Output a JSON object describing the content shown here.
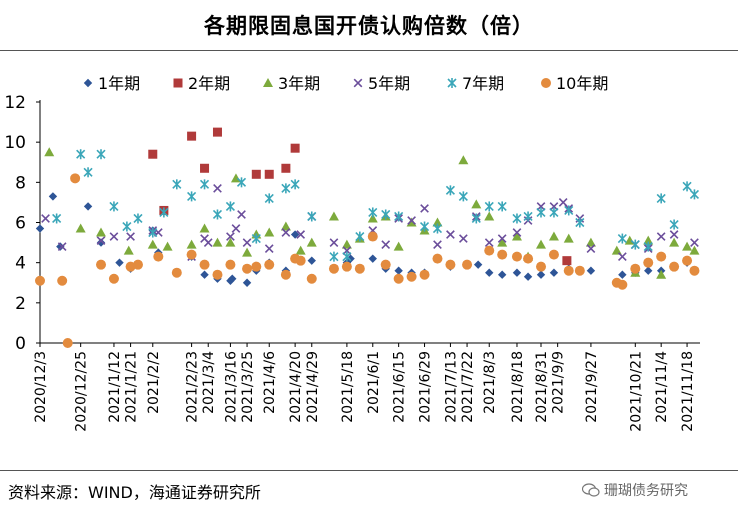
{
  "header": {
    "title": "各期限固息国开债认购倍数（倍）"
  },
  "footer": {
    "source": "资料来源：WIND，海通证券研究所",
    "watermark": "珊瑚债务研究"
  },
  "chart_data": {
    "type": "scatter",
    "title": "各期限固息国开债认购倍数（倍）",
    "xlabel": "",
    "ylabel": "",
    "ylim": [
      0,
      12
    ],
    "yticks": [
      0,
      2,
      4,
      6,
      8,
      10,
      12
    ],
    "grid": false,
    "legend_position": "top",
    "x_start": "2020-12-03",
    "x_end": "2021-11-25",
    "x_tick_labels": [
      "2020/12/3",
      "2020/12/25",
      "2021/1/12",
      "2021/1/21",
      "2021/2/2",
      "2021/2/23",
      "2021/3/4",
      "2021/3/16",
      "2021/3/25",
      "2021/4/6",
      "2021/4/20",
      "2021/4/29",
      "2021/5/18",
      "2021/6/1",
      "2021/6/15",
      "2021/6/29",
      "2021/7/13",
      "2021/7/22",
      "2021/8/3",
      "2021/8/18",
      "2021/8/31",
      "2021/9/9",
      "2021/9/27",
      "2021/10/21",
      "2021/11/4",
      "2021/11/18"
    ],
    "x_tick_dates": [
      "2020-12-03",
      "2020-12-25",
      "2021-01-12",
      "2021-01-21",
      "2021-02-02",
      "2021-02-23",
      "2021-03-04",
      "2021-03-16",
      "2021-03-25",
      "2021-04-06",
      "2021-04-20",
      "2021-04-29",
      "2021-05-18",
      "2021-06-01",
      "2021-06-15",
      "2021-06-29",
      "2021-07-13",
      "2021-07-22",
      "2021-08-03",
      "2021-08-18",
      "2021-08-31",
      "2021-09-09",
      "2021-09-27",
      "2021-10-21",
      "2021-11-04",
      "2021-11-18"
    ],
    "series": [
      {
        "name": "1年期",
        "color": "#2E5597",
        "marker": "diamond",
        "points": [
          [
            "2020-12-03",
            5.7
          ],
          [
            "2020-12-10",
            7.3
          ],
          [
            "2020-12-14",
            4.8
          ],
          [
            "2020-12-29",
            6.8
          ],
          [
            "2021-01-05",
            5.0
          ],
          [
            "2021-01-15",
            4.0
          ],
          [
            "2021-01-21",
            3.7
          ],
          [
            "2021-02-02",
            5.6
          ],
          [
            "2021-02-05",
            4.5
          ],
          [
            "2021-02-23",
            4.3
          ],
          [
            "2021-03-02",
            3.4
          ],
          [
            "2021-03-09",
            3.2
          ],
          [
            "2021-03-16",
            3.1
          ],
          [
            "2021-03-17",
            3.2
          ],
          [
            "2021-03-25",
            3.0
          ],
          [
            "2021-03-30",
            3.6
          ],
          [
            "2021-04-06",
            4.0
          ],
          [
            "2021-04-15",
            3.6
          ],
          [
            "2021-04-20",
            5.4
          ],
          [
            "2021-04-23",
            4.1
          ],
          [
            "2021-04-29",
            4.1
          ],
          [
            "2021-05-18",
            4.0
          ],
          [
            "2021-05-20",
            4.2
          ],
          [
            "2021-06-01",
            4.2
          ],
          [
            "2021-06-08",
            3.7
          ],
          [
            "2021-06-15",
            3.6
          ],
          [
            "2021-06-22",
            3.5
          ],
          [
            "2021-06-29",
            3.5
          ],
          [
            "2021-07-13",
            3.8
          ],
          [
            "2021-07-22",
            3.9
          ],
          [
            "2021-07-28",
            3.9
          ],
          [
            "2021-08-03",
            3.5
          ],
          [
            "2021-08-10",
            3.4
          ],
          [
            "2021-08-18",
            3.5
          ],
          [
            "2021-08-24",
            3.3
          ],
          [
            "2021-08-31",
            3.4
          ],
          [
            "2021-09-07",
            3.5
          ],
          [
            "2021-09-15",
            3.7
          ],
          [
            "2021-09-27",
            3.6
          ],
          [
            "2021-10-14",
            3.4
          ],
          [
            "2021-10-21",
            3.5
          ],
          [
            "2021-10-28",
            3.6
          ],
          [
            "2021-11-04",
            3.6
          ],
          [
            "2021-11-11",
            3.8
          ],
          [
            "2021-11-18",
            4.0
          ],
          [
            "2021-11-22",
            3.6
          ]
        ]
      },
      {
        "name": "2年期",
        "color": "#B03A3A",
        "marker": "square",
        "points": [
          [
            "2021-02-02",
            9.4
          ],
          [
            "2021-02-08",
            6.6
          ],
          [
            "2021-02-23",
            10.3
          ],
          [
            "2021-03-02",
            8.7
          ],
          [
            "2021-03-09",
            10.5
          ],
          [
            "2021-03-30",
            8.4
          ],
          [
            "2021-04-06",
            8.4
          ],
          [
            "2021-04-15",
            8.7
          ],
          [
            "2021-04-20",
            9.7
          ],
          [
            "2021-09-14",
            4.1
          ]
        ]
      },
      {
        "name": "3年期",
        "color": "#7DAA3C",
        "marker": "triangle",
        "points": [
          [
            "2020-12-08",
            9.5
          ],
          [
            "2020-12-25",
            5.7
          ],
          [
            "2021-01-05",
            5.5
          ],
          [
            "2021-01-20",
            4.6
          ],
          [
            "2021-02-02",
            4.9
          ],
          [
            "2021-02-10",
            4.8
          ],
          [
            "2021-02-23",
            4.9
          ],
          [
            "2021-03-02",
            5.7
          ],
          [
            "2021-03-09",
            5.0
          ],
          [
            "2021-03-16",
            5.0
          ],
          [
            "2021-03-19",
            8.2
          ],
          [
            "2021-03-25",
            4.5
          ],
          [
            "2021-03-30",
            5.4
          ],
          [
            "2021-04-06",
            5.5
          ],
          [
            "2021-04-15",
            5.8
          ],
          [
            "2021-04-23",
            4.6
          ],
          [
            "2021-04-29",
            5.0
          ],
          [
            "2021-05-11",
            6.3
          ],
          [
            "2021-05-18",
            4.9
          ],
          [
            "2021-05-25",
            5.2
          ],
          [
            "2021-06-01",
            6.2
          ],
          [
            "2021-06-08",
            6.3
          ],
          [
            "2021-06-15",
            4.8
          ],
          [
            "2021-06-22",
            6.0
          ],
          [
            "2021-06-29",
            5.6
          ],
          [
            "2021-07-06",
            6.0
          ],
          [
            "2021-07-20",
            9.1
          ],
          [
            "2021-07-27",
            6.9
          ],
          [
            "2021-08-03",
            6.3
          ],
          [
            "2021-08-10",
            5.0
          ],
          [
            "2021-08-18",
            5.3
          ],
          [
            "2021-08-24",
            4.3
          ],
          [
            "2021-08-31",
            4.9
          ],
          [
            "2021-09-07",
            5.3
          ],
          [
            "2021-09-15",
            5.2
          ],
          [
            "2021-09-27",
            5.0
          ],
          [
            "2021-10-11",
            4.6
          ],
          [
            "2021-10-18",
            5.1
          ],
          [
            "2021-10-21",
            3.5
          ],
          [
            "2021-10-28",
            5.1
          ],
          [
            "2021-11-04",
            3.4
          ],
          [
            "2021-11-11",
            5.0
          ],
          [
            "2021-11-18",
            4.8
          ],
          [
            "2021-11-22",
            4.6
          ]
        ]
      },
      {
        "name": "5年期",
        "color": "#6B4E9B",
        "marker": "x",
        "points": [
          [
            "2020-12-06",
            6.2
          ],
          [
            "2020-12-15",
            4.8
          ],
          [
            "2021-01-05",
            5.1
          ],
          [
            "2021-01-12",
            5.3
          ],
          [
            "2021-01-21",
            5.3
          ],
          [
            "2021-02-02",
            5.6
          ],
          [
            "2021-02-05",
            5.5
          ],
          [
            "2021-02-23",
            4.3
          ],
          [
            "2021-03-02",
            5.2
          ],
          [
            "2021-03-04",
            5.0
          ],
          [
            "2021-03-09",
            7.7
          ],
          [
            "2021-03-16",
            5.3
          ],
          [
            "2021-03-19",
            5.7
          ],
          [
            "2021-03-22",
            6.4
          ],
          [
            "2021-03-25",
            5.0
          ],
          [
            "2021-04-06",
            4.7
          ],
          [
            "2021-04-15",
            5.5
          ],
          [
            "2021-04-23",
            5.4
          ],
          [
            "2021-04-29",
            6.3
          ],
          [
            "2021-05-11",
            5.0
          ],
          [
            "2021-05-18",
            4.6
          ],
          [
            "2021-06-01",
            5.6
          ],
          [
            "2021-06-08",
            4.9
          ],
          [
            "2021-06-15",
            6.2
          ],
          [
            "2021-06-22",
            6.1
          ],
          [
            "2021-06-29",
            6.7
          ],
          [
            "2021-07-06",
            4.9
          ],
          [
            "2021-07-13",
            5.4
          ],
          [
            "2021-07-20",
            5.2
          ],
          [
            "2021-07-27",
            6.3
          ],
          [
            "2021-08-03",
            5.0
          ],
          [
            "2021-08-10",
            5.2
          ],
          [
            "2021-08-18",
            5.5
          ],
          [
            "2021-08-24",
            6.1
          ],
          [
            "2021-08-31",
            6.8
          ],
          [
            "2021-09-07",
            6.8
          ],
          [
            "2021-09-12",
            7.0
          ],
          [
            "2021-09-15",
            6.7
          ],
          [
            "2021-09-21",
            6.2
          ],
          [
            "2021-09-27",
            4.7
          ],
          [
            "2021-10-14",
            4.3
          ],
          [
            "2021-10-21",
            4.9
          ],
          [
            "2021-10-28",
            4.7
          ],
          [
            "2021-11-04",
            5.3
          ],
          [
            "2021-11-11",
            5.4
          ],
          [
            "2021-11-22",
            5.0
          ]
        ]
      },
      {
        "name": "7年期",
        "color": "#3AA6B9",
        "marker": "star",
        "points": [
          [
            "2020-12-12",
            6.2
          ],
          [
            "2020-12-25",
            9.4
          ],
          [
            "2020-12-29",
            8.5
          ],
          [
            "2021-01-05",
            9.4
          ],
          [
            "2021-01-12",
            6.8
          ],
          [
            "2021-01-19",
            5.8
          ],
          [
            "2021-01-25",
            6.2
          ],
          [
            "2021-02-02",
            5.5
          ],
          [
            "2021-02-08",
            6.5
          ],
          [
            "2021-02-15",
            7.9
          ],
          [
            "2021-02-23",
            7.3
          ],
          [
            "2021-03-02",
            7.9
          ],
          [
            "2021-03-09",
            6.4
          ],
          [
            "2021-03-16",
            6.8
          ],
          [
            "2021-03-22",
            8.0
          ],
          [
            "2021-03-30",
            5.2
          ],
          [
            "2021-04-06",
            7.2
          ],
          [
            "2021-04-15",
            7.7
          ],
          [
            "2021-04-20",
            7.9
          ],
          [
            "2021-04-29",
            6.3
          ],
          [
            "2021-05-11",
            4.3
          ],
          [
            "2021-05-18",
            4.3
          ],
          [
            "2021-05-25",
            5.3
          ],
          [
            "2021-06-01",
            6.5
          ],
          [
            "2021-06-08",
            6.4
          ],
          [
            "2021-06-15",
            6.3
          ],
          [
            "2021-06-29",
            5.8
          ],
          [
            "2021-07-06",
            5.7
          ],
          [
            "2021-07-13",
            7.6
          ],
          [
            "2021-07-20",
            7.3
          ],
          [
            "2021-07-27",
            6.2
          ],
          [
            "2021-08-03",
            6.8
          ],
          [
            "2021-08-10",
            6.8
          ],
          [
            "2021-08-18",
            6.2
          ],
          [
            "2021-08-24",
            6.3
          ],
          [
            "2021-08-31",
            6.5
          ],
          [
            "2021-09-07",
            6.5
          ],
          [
            "2021-09-15",
            6.6
          ],
          [
            "2021-09-21",
            6.0
          ],
          [
            "2021-10-14",
            5.2
          ],
          [
            "2021-10-21",
            4.9
          ],
          [
            "2021-10-28",
            4.8
          ],
          [
            "2021-11-04",
            7.2
          ],
          [
            "2021-11-11",
            5.9
          ],
          [
            "2021-11-18",
            7.8
          ],
          [
            "2021-11-22",
            7.4
          ]
        ]
      },
      {
        "name": "10年期",
        "color": "#E38B3E",
        "marker": "circle",
        "points": [
          [
            "2020-12-03",
            3.1
          ],
          [
            "2020-12-15",
            3.1
          ],
          [
            "2020-12-18",
            0.0
          ],
          [
            "2020-12-22",
            8.2
          ],
          [
            "2021-01-05",
            3.9
          ],
          [
            "2021-01-12",
            3.2
          ],
          [
            "2021-01-21",
            3.8
          ],
          [
            "2021-01-25",
            3.9
          ],
          [
            "2021-02-05",
            4.3
          ],
          [
            "2021-02-15",
            3.5
          ],
          [
            "2021-02-23",
            4.4
          ],
          [
            "2021-03-02",
            3.9
          ],
          [
            "2021-03-09",
            3.4
          ],
          [
            "2021-03-16",
            3.9
          ],
          [
            "2021-03-25",
            3.7
          ],
          [
            "2021-03-30",
            3.8
          ],
          [
            "2021-04-06",
            3.9
          ],
          [
            "2021-04-15",
            3.4
          ],
          [
            "2021-04-20",
            4.2
          ],
          [
            "2021-04-23",
            4.1
          ],
          [
            "2021-04-29",
            3.2
          ],
          [
            "2021-05-11",
            3.7
          ],
          [
            "2021-05-18",
            3.8
          ],
          [
            "2021-05-25",
            3.7
          ],
          [
            "2021-06-01",
            5.3
          ],
          [
            "2021-06-08",
            3.9
          ],
          [
            "2021-06-15",
            3.2
          ],
          [
            "2021-06-22",
            3.3
          ],
          [
            "2021-06-29",
            3.4
          ],
          [
            "2021-07-06",
            4.2
          ],
          [
            "2021-07-13",
            3.9
          ],
          [
            "2021-07-22",
            3.9
          ],
          [
            "2021-08-03",
            4.6
          ],
          [
            "2021-08-10",
            4.4
          ],
          [
            "2021-08-18",
            4.3
          ],
          [
            "2021-08-24",
            4.2
          ],
          [
            "2021-08-31",
            3.8
          ],
          [
            "2021-09-07",
            4.4
          ],
          [
            "2021-09-15",
            3.6
          ],
          [
            "2021-09-21",
            3.6
          ],
          [
            "2021-10-11",
            3.0
          ],
          [
            "2021-10-14",
            2.9
          ],
          [
            "2021-10-21",
            3.7
          ],
          [
            "2021-10-28",
            4.0
          ],
          [
            "2021-11-04",
            4.3
          ],
          [
            "2021-11-11",
            3.8
          ],
          [
            "2021-11-18",
            4.1
          ],
          [
            "2021-11-22",
            3.6
          ]
        ]
      }
    ]
  }
}
